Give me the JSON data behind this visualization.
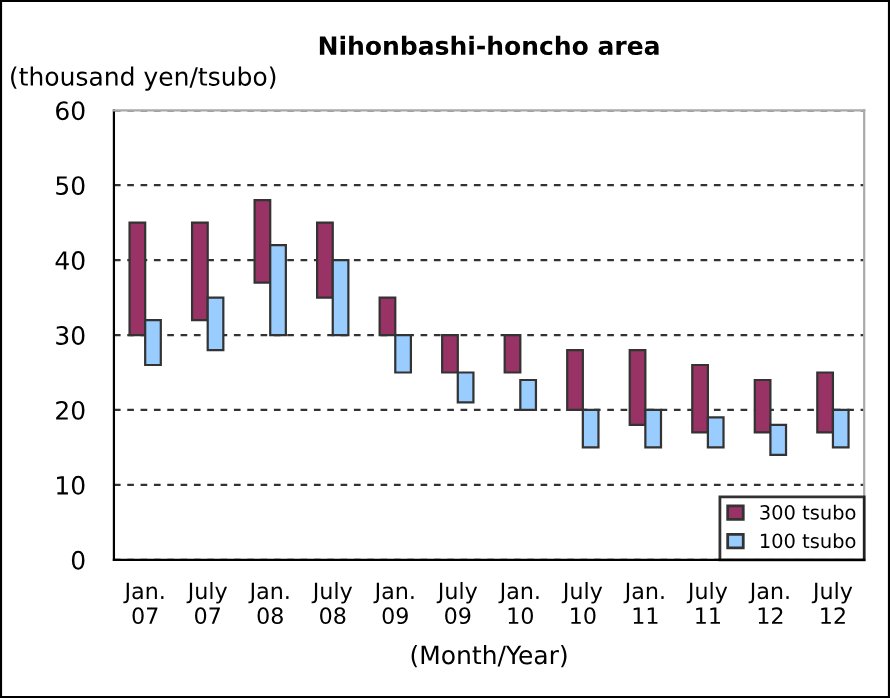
{
  "chart_data": {
    "type": "bar",
    "title": "Nihonbashi-honcho area",
    "ylabel": "(thousand yen/tsubo)",
    "xlabel": "(Month/Year)",
    "categories": [
      "Jan.\n07",
      "July\n07",
      "Jan.\n08",
      "July\n08",
      "Jan.\n09",
      "July\n09",
      "Jan.\n10",
      "July\n10",
      "Jan.\n11",
      "July\n11",
      "Jan.\n12",
      "July\n12"
    ],
    "series": [
      {
        "name": "300 tsubo",
        "color": "#993366",
        "base": [
          30,
          32,
          37,
          35,
          30,
          25,
          25,
          20,
          18,
          17,
          17,
          17
        ],
        "values": [
          15,
          13,
          11,
          10,
          5,
          5,
          5,
          8,
          10,
          9,
          7,
          8
        ]
      },
      {
        "name": "100 tsubo",
        "color": "#99ccff",
        "base": [
          26,
          28,
          30,
          30,
          25,
          21,
          20,
          15,
          15,
          15,
          14,
          15
        ],
        "values": [
          6,
          7,
          12,
          10,
          5,
          4,
          4,
          5,
          5,
          4,
          4,
          5
        ]
      }
    ],
    "ylim": [
      0,
      60
    ],
    "yticks": [
      0,
      10,
      20,
      30,
      40,
      50,
      60
    ],
    "grid": "y",
    "legend": "bottom right"
  }
}
